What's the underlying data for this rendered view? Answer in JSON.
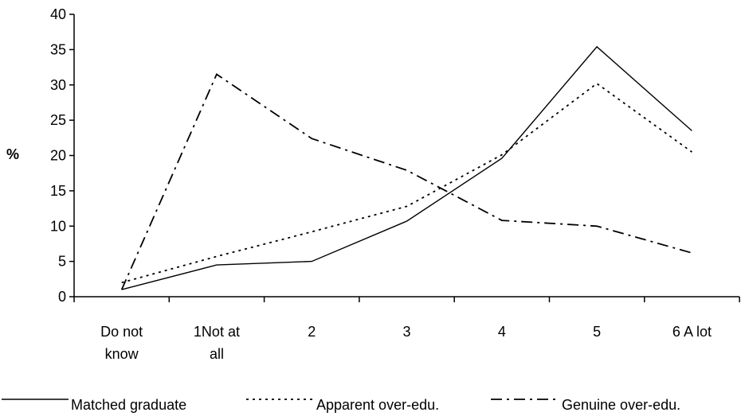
{
  "chart_data": {
    "type": "line",
    "title": "",
    "ylabel": "%",
    "xlabel": "",
    "ylim": [
      0,
      40
    ],
    "yticks": [
      0,
      5,
      10,
      15,
      20,
      25,
      30,
      35,
      40
    ],
    "categories": [
      [
        "Do not",
        "know"
      ],
      [
        "1Not at",
        "all"
      ],
      [
        "2"
      ],
      [
        "3"
      ],
      [
        "4"
      ],
      [
        "5"
      ],
      [
        "6 A lot"
      ]
    ],
    "series": [
      {
        "name": "Matched graduate",
        "style": "solid",
        "values": [
          1.0,
          4.5,
          5.0,
          10.7,
          19.6,
          35.4,
          23.5
        ]
      },
      {
        "name": "Apparent over-edu.",
        "style": "dotted",
        "values": [
          2.0,
          5.7,
          9.2,
          12.8,
          20.1,
          30.2,
          20.5
        ]
      },
      {
        "name": "Genuine over-edu.",
        "style": "dashdot",
        "values": [
          1.0,
          31.5,
          22.4,
          17.9,
          10.8,
          10.0,
          6.2
        ]
      }
    ],
    "grid": false,
    "legend_position": "bottom"
  }
}
